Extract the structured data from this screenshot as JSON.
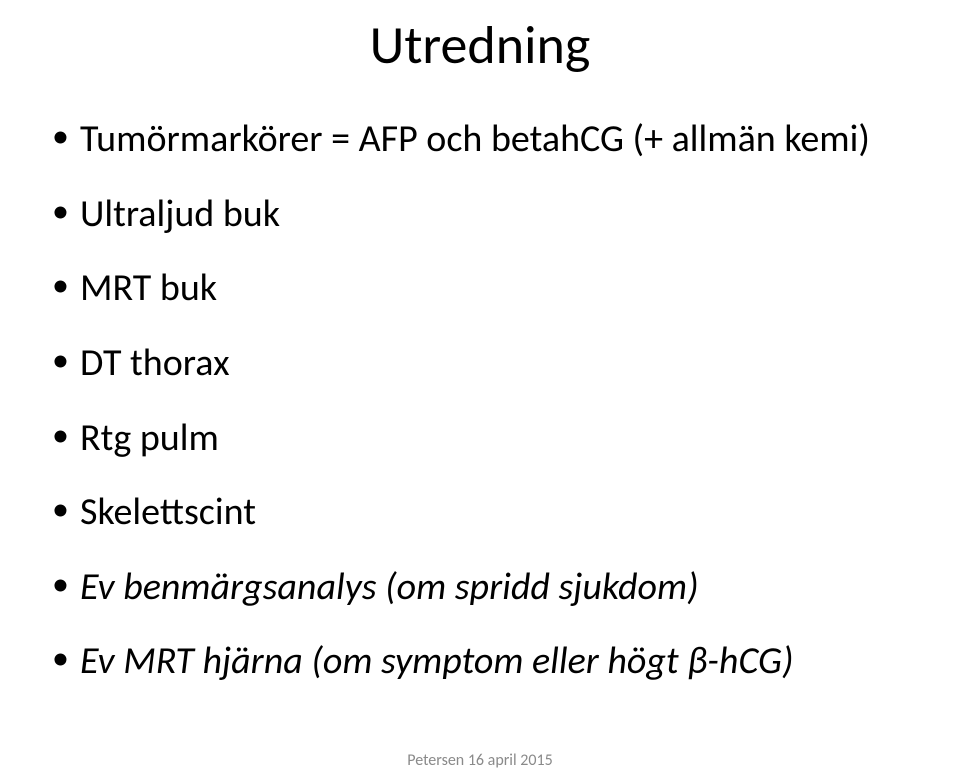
{
  "title": "Utredning",
  "bullets": [
    {
      "text": "Tumörmarkörer = AFP och betahCG (+ allmän kemi)",
      "italic": false
    },
    {
      "text": "Ultraljud buk",
      "italic": false
    },
    {
      "text": "MRT buk",
      "italic": false
    },
    {
      "text": "DT thorax",
      "italic": false
    },
    {
      "text": "Rtg pulm",
      "italic": false
    },
    {
      "text": "Skelettscint",
      "italic": false
    },
    {
      "text": "Ev benmärgsanalys (om spridd sjukdom)",
      "italic": true
    },
    {
      "text": "Ev MRT hjärna (om symptom eller högt β-hCG)",
      "italic": true
    }
  ],
  "footer": "Petersen 16 april 2015",
  "colors": {
    "background": "#ffffff",
    "text": "#000000",
    "footer": "#8a8a8a"
  },
  "typography": {
    "title_fontsize": 54,
    "bullet_fontsize": 38,
    "footer_fontsize": 16,
    "font_family": "Calibri"
  }
}
